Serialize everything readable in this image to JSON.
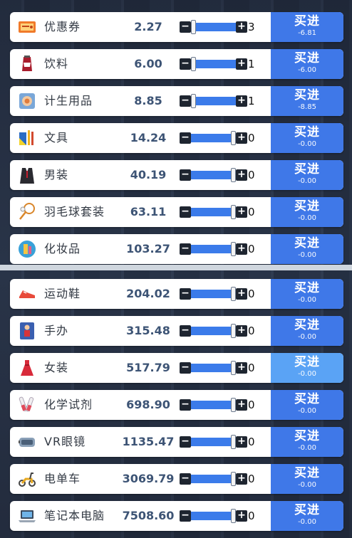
{
  "buy_label": "买进",
  "colors": {
    "buy_button": "#3f78e8",
    "buy_button_highlight": "#5aa3f5",
    "slider": "#3b7bea",
    "price_text": "#3d5475"
  },
  "top_list": [
    {
      "name": "优惠券",
      "icon": "coupon-icon",
      "price": "2.27",
      "qty": "3",
      "cost": "-6.81",
      "slider": 0.0
    },
    {
      "name": "饮料",
      "icon": "drink-icon",
      "price": "6.00",
      "qty": "1",
      "cost": "-6.00",
      "slider": 0.0
    },
    {
      "name": "计生用品",
      "icon": "contraceptive-icon",
      "price": "8.85",
      "qty": "1",
      "cost": "-8.85",
      "slider": 0.0
    },
    {
      "name": "文具",
      "icon": "stationery-icon",
      "price": "14.24",
      "qty": "0",
      "cost": "-0.00",
      "slider": 1.0
    },
    {
      "name": "男装",
      "icon": "menswear-icon",
      "price": "40.19",
      "qty": "0",
      "cost": "-0.00",
      "slider": 1.0
    },
    {
      "name": "羽毛球套装",
      "icon": "badminton-icon",
      "price": "63.11",
      "qty": "0",
      "cost": "-0.00",
      "slider": 1.0
    },
    {
      "name": "化妆品",
      "icon": "cosmetics-icon",
      "price": "103.27",
      "qty": "0",
      "cost": "-0.00",
      "slider": 1.0
    }
  ],
  "bottom_list": [
    {
      "name": "运动鞋",
      "icon": "sneaker-icon",
      "price": "204.02",
      "qty": "0",
      "cost": "-0.00",
      "slider": 1.0
    },
    {
      "name": "手办",
      "icon": "figure-icon",
      "price": "315.48",
      "qty": "0",
      "cost": "-0.00",
      "slider": 1.0
    },
    {
      "name": "女装",
      "icon": "dress-icon",
      "price": "517.79",
      "qty": "0",
      "cost": "-0.00",
      "slider": 1.0,
      "highlight": true
    },
    {
      "name": "化学试剂",
      "icon": "test-tube-icon",
      "price": "698.90",
      "qty": "0",
      "cost": "-0.00",
      "slider": 1.0
    },
    {
      "name": "VR眼镜",
      "icon": "vr-headset-icon",
      "price": "1135.47",
      "qty": "0",
      "cost": "-0.00",
      "slider": 1.0
    },
    {
      "name": "电单车",
      "icon": "scooter-icon",
      "price": "3069.79",
      "qty": "0",
      "cost": "-0.00",
      "slider": 1.0
    },
    {
      "name": "笔记本电脑",
      "icon": "laptop-icon",
      "price": "7508.60",
      "qty": "0",
      "cost": "-0.00",
      "slider": 1.0
    }
  ]
}
